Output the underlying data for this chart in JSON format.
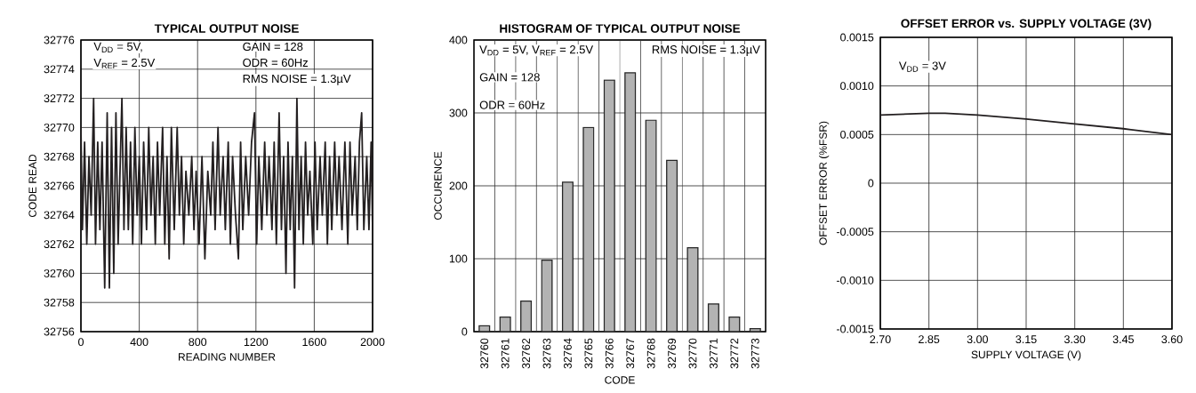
{
  "chart_data": [
    {
      "type": "line",
      "title": "TYPICAL OUTPUT NOISE",
      "xlabel": "READING NUMBER",
      "ylabel": "CODE READ",
      "annotations": [
        "V$_{DD}$ = 5V,",
        "V$_{REF}$ = 2.5V",
        "GAIN = 128",
        "ODR = 60Hz",
        "RMS NOISE = 1.3µV"
      ],
      "xlim": [
        0,
        2000
      ],
      "xticks": [
        0,
        400,
        800,
        1200,
        1600,
        2000
      ],
      "ylim": [
        32756,
        32776
      ],
      "yticks": [
        32756,
        32758,
        32760,
        32762,
        32764,
        32766,
        32768,
        32770,
        32772,
        32774,
        32776
      ],
      "grid": true,
      "series": [
        {
          "color": "#231f20",
          "x": [
            0,
            10,
            25,
            40,
            55,
            70,
            87,
            100,
            115,
            130,
            145,
            163,
            180,
            195,
            210,
            225,
            240,
            255,
            281,
            295,
            310,
            325,
            340,
            355,
            370,
            385,
            400,
            415,
            430,
            450,
            465,
            480,
            495,
            510,
            525,
            540,
            560,
            575,
            590,
            605,
            620,
            640,
            660,
            675,
            690,
            705,
            720,
            740,
            760,
            775,
            790,
            810,
            830,
            850,
            870,
            890,
            905,
            920,
            940,
            955,
            975,
            990,
            1010,
            1025,
            1040,
            1060,
            1080,
            1095,
            1110,
            1130,
            1150,
            1170,
            1190,
            1205,
            1220,
            1240,
            1260,
            1275,
            1290,
            1310,
            1325,
            1340,
            1359,
            1375,
            1390,
            1406,
            1420,
            1435,
            1450,
            1465,
            1481,
            1495,
            1510,
            1525,
            1540,
            1555,
            1570,
            1590,
            1605,
            1620,
            1640,
            1655,
            1675,
            1690,
            1705,
            1720,
            1740,
            1755,
            1770,
            1790,
            1810,
            1830,
            1845,
            1860,
            1880,
            1895,
            1910,
            1925,
            1940,
            1960,
            1975,
            1990,
            2000
          ],
          "values": [
            32770,
            32763,
            32769,
            32762,
            32768,
            32764,
            32772,
            32762,
            32769,
            32763,
            32769,
            32759,
            32771,
            32759,
            32770,
            32760,
            32771,
            32762,
            32772,
            32763,
            32770,
            32763,
            32769,
            32762,
            32770,
            32764,
            32768,
            32762,
            32769,
            32763,
            32770,
            32764,
            32768,
            32762,
            32769,
            32764,
            32770,
            32762,
            32768,
            32761,
            32770,
            32763,
            32770,
            32764,
            32768,
            32762,
            32767,
            32764,
            32768,
            32763,
            32767,
            32762,
            32768,
            32761,
            32767,
            32764,
            32769,
            32763,
            32770,
            32764,
            32768,
            32763,
            32769,
            32762,
            32768,
            32764,
            32761,
            32769,
            32763,
            32768,
            32764,
            32769,
            32771,
            32762,
            32768,
            32763,
            32769,
            32764,
            32768,
            32763,
            32769,
            32762,
            32771,
            32763,
            32768,
            32760,
            32769,
            32763,
            32768,
            32759,
            32772,
            32763,
            32768,
            32762,
            32769,
            32764,
            32767,
            32762,
            32769,
            32763,
            32768,
            32764,
            32769,
            32762,
            32768,
            32763,
            32769,
            32764,
            32768,
            32763,
            32769,
            32762,
            32769,
            32764,
            32768,
            32763,
            32769,
            32771,
            32763,
            32768,
            32763,
            32769,
            32763
          ]
        }
      ]
    },
    {
      "type": "bar",
      "title": "HISTOGRAM OF TYPICAL OUTPUT NOISE",
      "xlabel": "CODE",
      "ylabel": "OCCURENCE",
      "annotations": [
        "V$_{DD}$ = 5V, V$_{REF}$ = 2.5V",
        "GAIN = 128",
        "ODR = 60Hz",
        "RMS NOISE = 1.3µV"
      ],
      "categories": [
        "32760",
        "32761",
        "32762",
        "32763",
        "32764",
        "32765",
        "32766",
        "32767",
        "32768",
        "32769",
        "32770",
        "32771",
        "32772",
        "32773"
      ],
      "values": [
        8,
        20,
        42,
        98,
        205,
        280,
        345,
        355,
        290,
        235,
        115,
        38,
        20,
        4
      ],
      "color": "#b3b3b3",
      "ylim": [
        0,
        400
      ],
      "yticks": [
        0,
        100,
        200,
        300,
        400
      ],
      "grid": true
    },
    {
      "type": "line",
      "title": "OFFSET ERROR vs. SUPPLY VOLTAGE (3V)",
      "xlabel": "SUPPLY VOLTAGE (V)",
      "ylabel": "OFFSET ERROR (%FSR)",
      "annotations": [
        "V$_{DD}$ = 3V"
      ],
      "xlim": [
        2.7,
        3.6
      ],
      "xticks": [
        {
          "value": 2.7,
          "label": "2.70"
        },
        {
          "value": 2.85,
          "label": "2.85"
        },
        {
          "value": 3.0,
          "label": "3.00"
        },
        {
          "value": 3.15,
          "label": "3.15"
        },
        {
          "value": 3.3,
          "label": "3.30"
        },
        {
          "value": 3.45,
          "label": "3.45"
        },
        {
          "value": 3.6,
          "label": "3.60"
        }
      ],
      "ylim": [
        -0.0015,
        0.0015
      ],
      "yticks": [
        {
          "value": -0.0015,
          "label": "-0.0015"
        },
        {
          "value": -0.001,
          "label": "-0.0010"
        },
        {
          "value": -0.0005,
          "label": "-0.0005"
        },
        0,
        {
          "value": 0.0005,
          "label": "0.0005"
        },
        {
          "value": 0.001,
          "label": "0.0010"
        },
        {
          "value": 0.0015,
          "label": "0.0015"
        }
      ],
      "grid": true,
      "series": [
        {
          "color": "#231f20",
          "x": [
            2.7,
            2.85,
            2.9,
            3.0,
            3.15,
            3.3,
            3.45,
            3.6
          ],
          "values": [
            0.0007,
            0.00072,
            0.00072,
            0.0007,
            0.00066,
            0.00061,
            0.00056,
            0.0005
          ]
        }
      ]
    }
  ]
}
